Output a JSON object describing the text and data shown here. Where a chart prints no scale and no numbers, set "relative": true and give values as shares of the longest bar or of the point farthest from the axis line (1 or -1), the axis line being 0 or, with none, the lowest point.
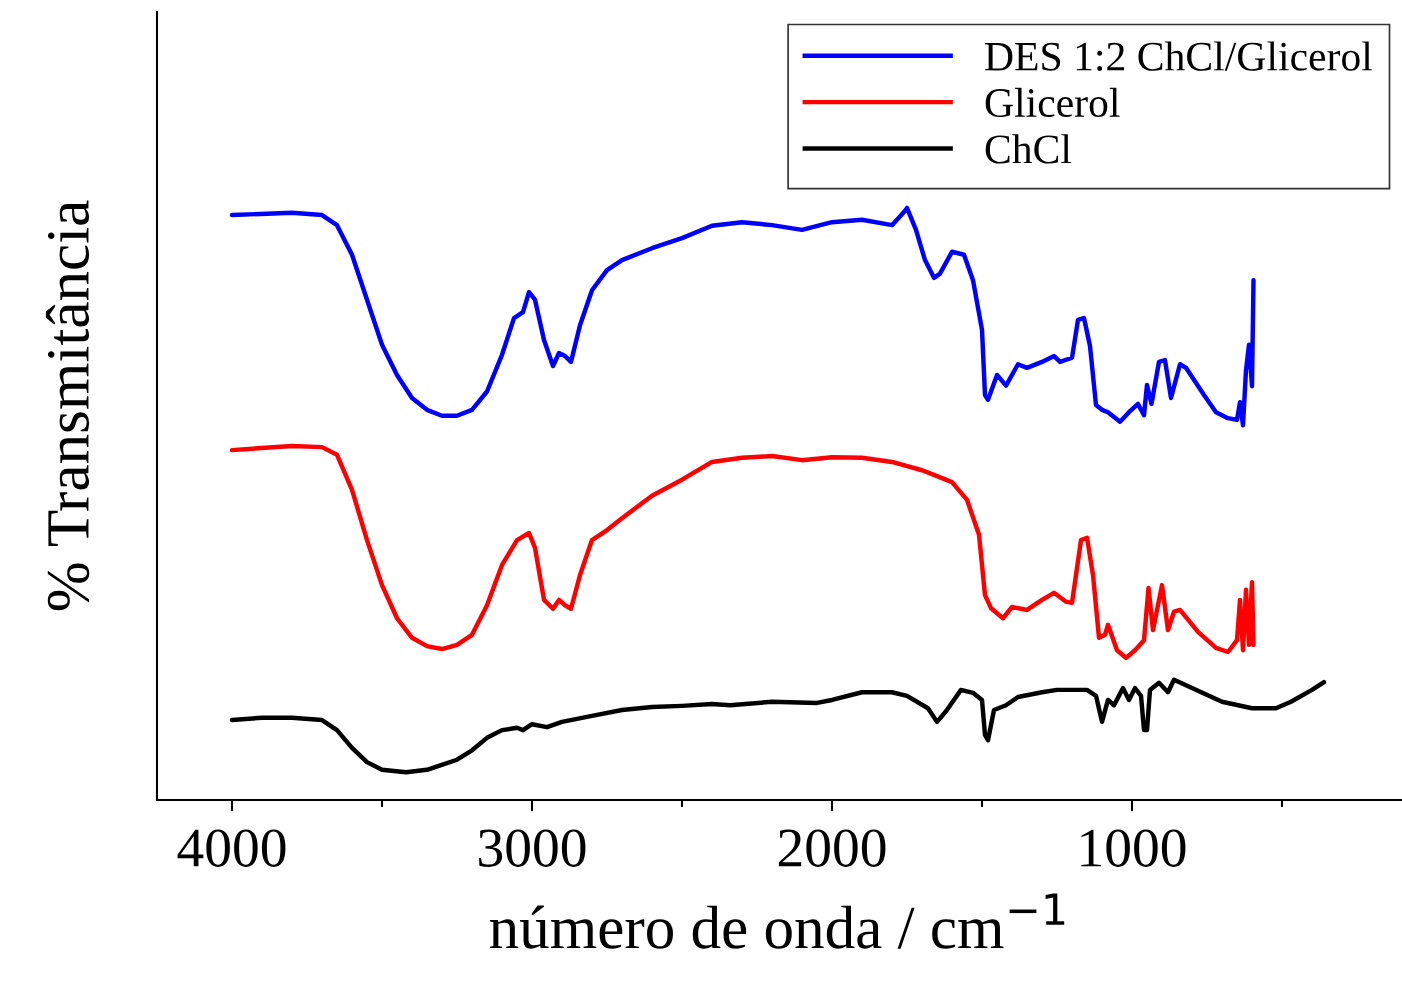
{
  "chart_data": {
    "type": "line",
    "relative": true,
    "xlabel": "número de onda / cm$^{−1}$",
    "ylabel": "% Transmitância",
    "xlim": [
      4250,
      100
    ],
    "xticks": [
      4000,
      {
        "value": 3500,
        "label": null
      },
      3000,
      {
        "value": 2500,
        "label": null
      },
      2000,
      {
        "value": 1500,
        "label": null
      },
      1000,
      {
        "value": 500,
        "label": null
      }
    ],
    "tick_labels": "x",
    "grid": false,
    "legend": "top right",
    "line_style": "solid",
    "marker": "none",
    "series": [
      {
        "name": "DES 1:2 ChCl/Glicerol",
        "color": "#0000ff",
        "x": [
          4000,
          3800,
          3700,
          3650,
          3600,
          3550,
          3500,
          3450,
          3400,
          3350,
          3300,
          3250,
          3200,
          3150,
          3100,
          3060,
          3030,
          3010,
          2990,
          2960,
          2930,
          2910,
          2890,
          2870,
          2840,
          2800,
          2750,
          2700,
          2600,
          2500,
          2400,
          2300,
          2200,
          2100,
          2000,
          1900,
          1800,
          1760,
          1750,
          1720,
          1690,
          1660,
          1640,
          1600,
          1560,
          1530,
          1500,
          1490,
          1480,
          1450,
          1420,
          1380,
          1350,
          1300,
          1260,
          1240,
          1200,
          1180,
          1160,
          1140,
          1120,
          1100,
          1080,
          1040,
          1010,
          980,
          960,
          950,
          935,
          910,
          890,
          870,
          840,
          820,
          760,
          720,
          680,
          650,
          640,
          630,
          620,
          610,
          600,
          595
        ],
        "values": [
          0.988,
          0.992,
          0.988,
          0.971,
          0.921,
          0.845,
          0.769,
          0.718,
          0.679,
          0.659,
          0.649,
          0.649,
          0.659,
          0.69,
          0.752,
          0.814,
          0.824,
          0.858,
          0.845,
          0.777,
          0.733,
          0.755,
          0.75,
          0.74,
          0.802,
          0.861,
          0.895,
          0.912,
          0.932,
          0.949,
          0.97,
          0.976,
          0.971,
          0.963,
          0.976,
          0.98,
          0.971,
          0.993,
          1.0,
          0.963,
          0.912,
          0.882,
          0.889,
          0.926,
          0.921,
          0.878,
          0.794,
          0.684,
          0.676,
          0.718,
          0.7,
          0.736,
          0.73,
          0.74,
          0.75,
          0.74,
          0.747,
          0.811,
          0.814,
          0.767,
          0.667,
          0.659,
          0.655,
          0.639,
          0.655,
          0.669,
          0.65,
          0.701,
          0.669,
          0.74,
          0.743,
          0.679,
          0.736,
          0.73,
          0.684,
          0.655,
          0.645,
          0.642,
          0.672,
          0.633,
          0.726,
          0.769,
          0.699,
          0.878
        ]
      },
      {
        "name": "Glicerol",
        "color": "#ff0000",
        "x": [
          4000,
          3800,
          3700,
          3650,
          3600,
          3550,
          3500,
          3450,
          3400,
          3350,
          3300,
          3250,
          3200,
          3150,
          3100,
          3050,
          3010,
          2990,
          2960,
          2930,
          2910,
          2890,
          2870,
          2840,
          2800,
          2750,
          2700,
          2600,
          2500,
          2400,
          2300,
          2200,
          2100,
          2000,
          1900,
          1800,
          1700,
          1650,
          1600,
          1550,
          1510,
          1490,
          1470,
          1430,
          1400,
          1350,
          1300,
          1260,
          1220,
          1200,
          1170,
          1150,
          1130,
          1110,
          1090,
          1080,
          1050,
          1020,
          990,
          960,
          945,
          930,
          900,
          880,
          860,
          840,
          780,
          720,
          680,
          650,
          640,
          630,
          620,
          610,
          600,
          595
        ],
        "values": [
          0.591,
          0.598,
          0.596,
          0.583,
          0.524,
          0.439,
          0.363,
          0.307,
          0.274,
          0.26,
          0.255,
          0.262,
          0.279,
          0.329,
          0.397,
          0.439,
          0.451,
          0.426,
          0.338,
          0.323,
          0.338,
          0.329,
          0.323,
          0.38,
          0.439,
          0.456,
          0.476,
          0.514,
          0.541,
          0.571,
          0.578,
          0.581,
          0.574,
          0.579,
          0.578,
          0.571,
          0.557,
          0.547,
          0.537,
          0.507,
          0.448,
          0.346,
          0.324,
          0.307,
          0.326,
          0.321,
          0.338,
          0.35,
          0.335,
          0.333,
          0.439,
          0.443,
          0.38,
          0.274,
          0.279,
          0.296,
          0.253,
          0.24,
          0.253,
          0.27,
          0.358,
          0.287,
          0.363,
          0.287,
          0.318,
          0.321,
          0.284,
          0.257,
          0.25,
          0.27,
          0.338,
          0.253,
          0.355,
          0.262,
          0.368,
          0.262
        ]
      },
      {
        "name": "ChCl",
        "color": "#000000",
        "x": [
          4000,
          3900,
          3800,
          3700,
          3650,
          3600,
          3550,
          3500,
          3420,
          3350,
          3250,
          3200,
          3150,
          3100,
          3050,
          3030,
          3000,
          2950,
          2900,
          2800,
          2700,
          2600,
          2500,
          2400,
          2340,
          2200,
          2050,
          2000,
          1900,
          1800,
          1750,
          1680,
          1650,
          1620,
          1570,
          1530,
          1500,
          1490,
          1480,
          1460,
          1420,
          1380,
          1300,
          1250,
          1200,
          1150,
          1120,
          1100,
          1080,
          1060,
          1030,
          1010,
          990,
          970,
          960,
          950,
          940,
          910,
          880,
          860,
          800,
          700,
          600,
          520,
          470,
          400,
          360
        ],
        "values": [
          0.135,
          0.139,
          0.139,
          0.135,
          0.118,
          0.088,
          0.064,
          0.051,
          0.047,
          0.051,
          0.068,
          0.084,
          0.105,
          0.118,
          0.122,
          0.118,
          0.128,
          0.123,
          0.132,
          0.142,
          0.152,
          0.157,
          0.159,
          0.162,
          0.16,
          0.166,
          0.164,
          0.169,
          0.182,
          0.182,
          0.176,
          0.155,
          0.132,
          0.15,
          0.186,
          0.181,
          0.169,
          0.11,
          0.101,
          0.152,
          0.16,
          0.174,
          0.182,
          0.186,
          0.186,
          0.186,
          0.176,
          0.132,
          0.169,
          0.16,
          0.189,
          0.169,
          0.189,
          0.176,
          0.118,
          0.118,
          0.186,
          0.198,
          0.182,
          0.203,
          0.189,
          0.166,
          0.155,
          0.155,
          0.166,
          0.186,
          0.199
        ]
      }
    ]
  }
}
